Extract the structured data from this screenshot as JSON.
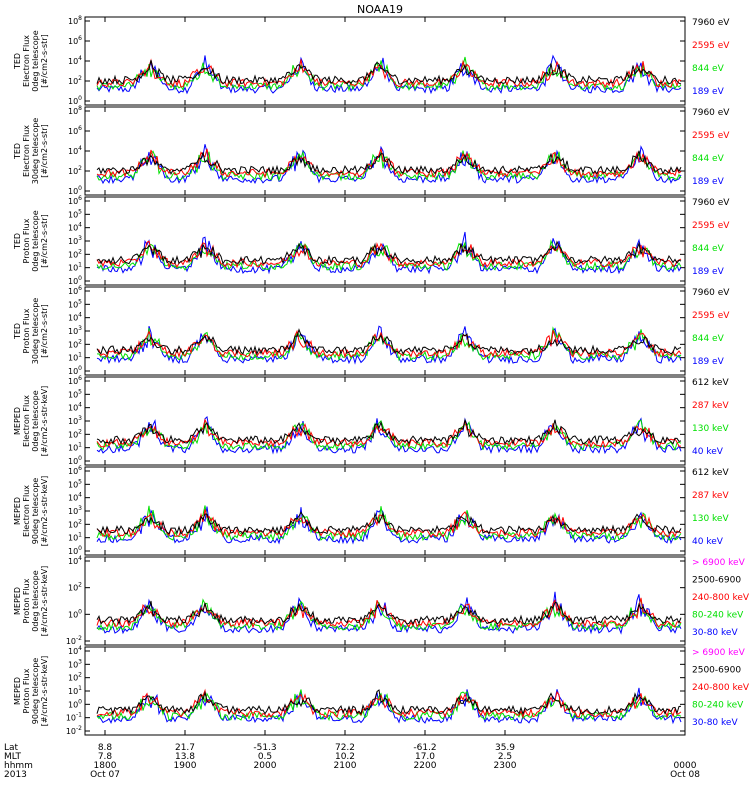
{
  "title": "NOAA19",
  "colors": {
    "black": "#000000",
    "red": "#ff0000",
    "green": "#00e000",
    "blue": "#0000ff",
    "magenta": "#ff00ff",
    "text": "#000000"
  },
  "chart_data": [
    {
      "type": "line",
      "instrument": "TED",
      "ylabel_lines": [
        "TED",
        "Electron Flux",
        "0deg telescope",
        "[#/cm2-s-str]"
      ],
      "ylog_exp": [
        0,
        2,
        4,
        6,
        8
      ],
      "ylim": [
        1,
        100000000
      ],
      "legend": [
        {
          "text": "7960 eV",
          "color": "black"
        },
        {
          "text": "2595 eV",
          "color": "red"
        },
        {
          "text": "844 eV",
          "color": "green"
        },
        {
          "text": "189 eV",
          "color": "blue"
        }
      ]
    },
    {
      "type": "line",
      "instrument": "TED",
      "ylabel_lines": [
        "TED",
        "Electron Flux",
        "30deg telescope",
        "[#/cm2-s-str]"
      ],
      "ylog_exp": [
        0,
        2,
        4,
        6,
        8
      ],
      "ylim": [
        1,
        100000000
      ],
      "legend": [
        {
          "text": "7960 eV",
          "color": "black"
        },
        {
          "text": "2595 eV",
          "color": "red"
        },
        {
          "text": "844 eV",
          "color": "green"
        },
        {
          "text": "189 eV",
          "color": "blue"
        }
      ]
    },
    {
      "type": "line",
      "instrument": "TED",
      "ylabel_lines": [
        "TED",
        "Proton Flux",
        "0deg telescope",
        "[#/cm2-s-str]"
      ],
      "ylog_exp": [
        0,
        1,
        2,
        3,
        4,
        5,
        6
      ],
      "ylim": [
        1,
        1000000
      ],
      "legend": [
        {
          "text": "7960 eV",
          "color": "black"
        },
        {
          "text": "2595 eV",
          "color": "red"
        },
        {
          "text": "844 eV",
          "color": "green"
        },
        {
          "text": "189 eV",
          "color": "blue"
        }
      ]
    },
    {
      "type": "line",
      "instrument": "TED",
      "ylabel_lines": [
        "TED",
        "Proton Flux",
        "30deg telescope",
        "[#/cm2-s-str]"
      ],
      "ylog_exp": [
        0,
        1,
        2,
        3,
        4,
        5,
        6
      ],
      "ylim": [
        1,
        1000000
      ],
      "legend": [
        {
          "text": "7960 eV",
          "color": "black"
        },
        {
          "text": "2595 eV",
          "color": "red"
        },
        {
          "text": "844 eV",
          "color": "green"
        },
        {
          "text": "189 eV",
          "color": "blue"
        }
      ]
    },
    {
      "type": "line",
      "instrument": "MEPED",
      "ylabel_lines": [
        "MEPED",
        "Electron Flux",
        "0deg telescope",
        "[#/cm2-s-str-keV]"
      ],
      "ylog_exp": [
        0,
        1,
        2,
        3,
        4,
        5,
        6
      ],
      "ylim": [
        1,
        1000000
      ],
      "legend": [
        {
          "text": "612 keV",
          "color": "black"
        },
        {
          "text": "287 keV",
          "color": "red"
        },
        {
          "text": "130 keV",
          "color": "green"
        },
        {
          "text": "40 keV",
          "color": "blue"
        }
      ]
    },
    {
      "type": "line",
      "instrument": "MEPED",
      "ylabel_lines": [
        "MEPED",
        "Electron Flux",
        "90deg telescope",
        "[#/cm2-s-str-keV]"
      ],
      "ylog_exp": [
        0,
        1,
        2,
        3,
        4,
        5,
        6
      ],
      "ylim": [
        1,
        1000000
      ],
      "legend": [
        {
          "text": "612 keV",
          "color": "black"
        },
        {
          "text": "287 keV",
          "color": "red"
        },
        {
          "text": "130 keV",
          "color": "green"
        },
        {
          "text": "40 keV",
          "color": "blue"
        }
      ]
    },
    {
      "type": "line",
      "instrument": "MEPED",
      "ylabel_lines": [
        "MEPED",
        "Proton Flux",
        "0deg telescope",
        "[#/cm2-s-str-keV]"
      ],
      "ylog_exp": [
        -2,
        0,
        2,
        4
      ],
      "ylim": [
        0.01,
        10000
      ],
      "legend": [
        {
          "text": "> 6900 keV",
          "color": "magenta"
        },
        {
          "text": "2500-6900",
          "color": "black"
        },
        {
          "text": "240-800 keV",
          "color": "red"
        },
        {
          "text": "80-240 keV",
          "color": "green"
        },
        {
          "text": "30-80 keV",
          "color": "blue"
        }
      ]
    },
    {
      "type": "line",
      "instrument": "MEPED",
      "ylabel_lines": [
        "MEPED",
        "Proton Flux",
        "90deg telescope",
        "[#/cm2-s-str-keV]"
      ],
      "ylog_exp": [
        -2,
        -1,
        0,
        1,
        2,
        3,
        4
      ],
      "ylim": [
        0.01,
        10000
      ],
      "legend": [
        {
          "text": "> 6900 keV",
          "color": "magenta"
        },
        {
          "text": "2500-6900",
          "color": "black"
        },
        {
          "text": "240-800 keV",
          "color": "red"
        },
        {
          "text": "80-240 keV",
          "color": "green"
        },
        {
          "text": "30-80 keV",
          "color": "blue"
        }
      ]
    }
  ],
  "x_axis": {
    "row_labels": [
      "Lat",
      "MLT",
      "hhmm",
      "2013"
    ],
    "ticks": [
      {
        "lat": "8.8",
        "mlt": "7.8",
        "hhmm": "1800",
        "date": "Oct 07"
      },
      {
        "lat": "21.7",
        "mlt": "13.8",
        "hhmm": "1900",
        "date": ""
      },
      {
        "lat": "-51.3",
        "mlt": "0.5",
        "hhmm": "2000",
        "date": ""
      },
      {
        "lat": "72.2",
        "mlt": "10.2",
        "hhmm": "2100",
        "date": ""
      },
      {
        "lat": "-61.2",
        "mlt": "17.0",
        "hhmm": "2200",
        "date": ""
      },
      {
        "lat": "35.9",
        "mlt": "2.5",
        "hhmm": "2300",
        "date": ""
      },
      {
        "lat": "",
        "mlt": "",
        "hhmm": "0000",
        "date": "Oct 08"
      }
    ]
  }
}
